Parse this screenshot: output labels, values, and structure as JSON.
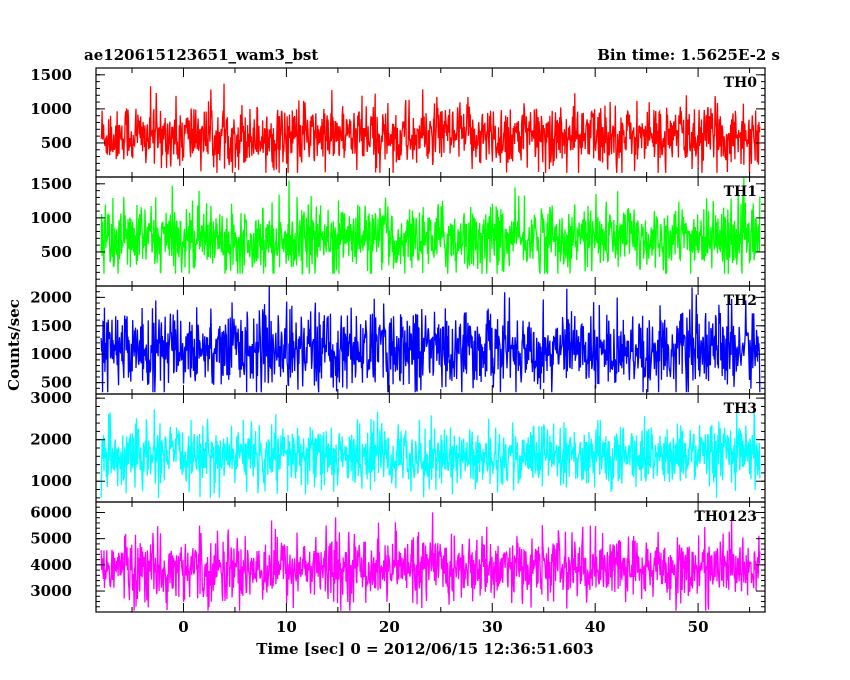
{
  "title_left": "ae120615123651_wam3_bst",
  "title_right": "Bin time: 1.5625E-2 s",
  "xlabel": "Time [sec] 0 = 2012/06/15 12:36:51.603",
  "ylabel": "Counts/sec",
  "chart_data": {
    "type": "line",
    "title": "ae120615123651_wam3_bst",
    "subtitle": "Bin time: 1.5625E-2 s",
    "xlabel": "Time [sec] 0 = 2012/06/15 12:36:51.603",
    "ylabel": "Counts/sec",
    "bin_time_s": 0.015625,
    "xlim": [
      -8.5,
      56.5
    ],
    "xticks": [
      0,
      10,
      20,
      30,
      40,
      50
    ],
    "data_range_x": [
      -8,
      56
    ],
    "grid": false,
    "panels": [
      {
        "name": "TH0",
        "color": "#ff0000",
        "ylim": [
          0,
          1600
        ],
        "yticks": [
          500,
          1000,
          1500
        ],
        "baseline": 600,
        "low": 60,
        "high": 1600,
        "spread": 420
      },
      {
        "name": "TH1",
        "color": "#00ff00",
        "ylim": [
          0,
          1600
        ],
        "yticks": [
          500,
          1000,
          1500
        ],
        "baseline": 700,
        "low": 180,
        "high": 1600,
        "spread": 430
      },
      {
        "name": "TH2",
        "color": "#0000ff",
        "ylim": [
          300,
          2200
        ],
        "yticks": [
          500,
          1000,
          1500,
          2000
        ],
        "baseline": 1100,
        "low": 330,
        "high": 2200,
        "spread": 600
      },
      {
        "name": "TH3",
        "color": "#00ffff",
        "ylim": [
          500,
          3100
        ],
        "yticks": [
          1000,
          2000,
          3000
        ],
        "baseline": 1600,
        "low": 600,
        "high": 3100,
        "spread": 650
      },
      {
        "name": "TH0123",
        "color": "#ff00ff",
        "ylim": [
          2200,
          6400
        ],
        "yticks": [
          3000,
          4000,
          5000,
          6000
        ],
        "baseline": 3900,
        "low": 2250,
        "high": 6400,
        "spread": 1100
      }
    ]
  }
}
